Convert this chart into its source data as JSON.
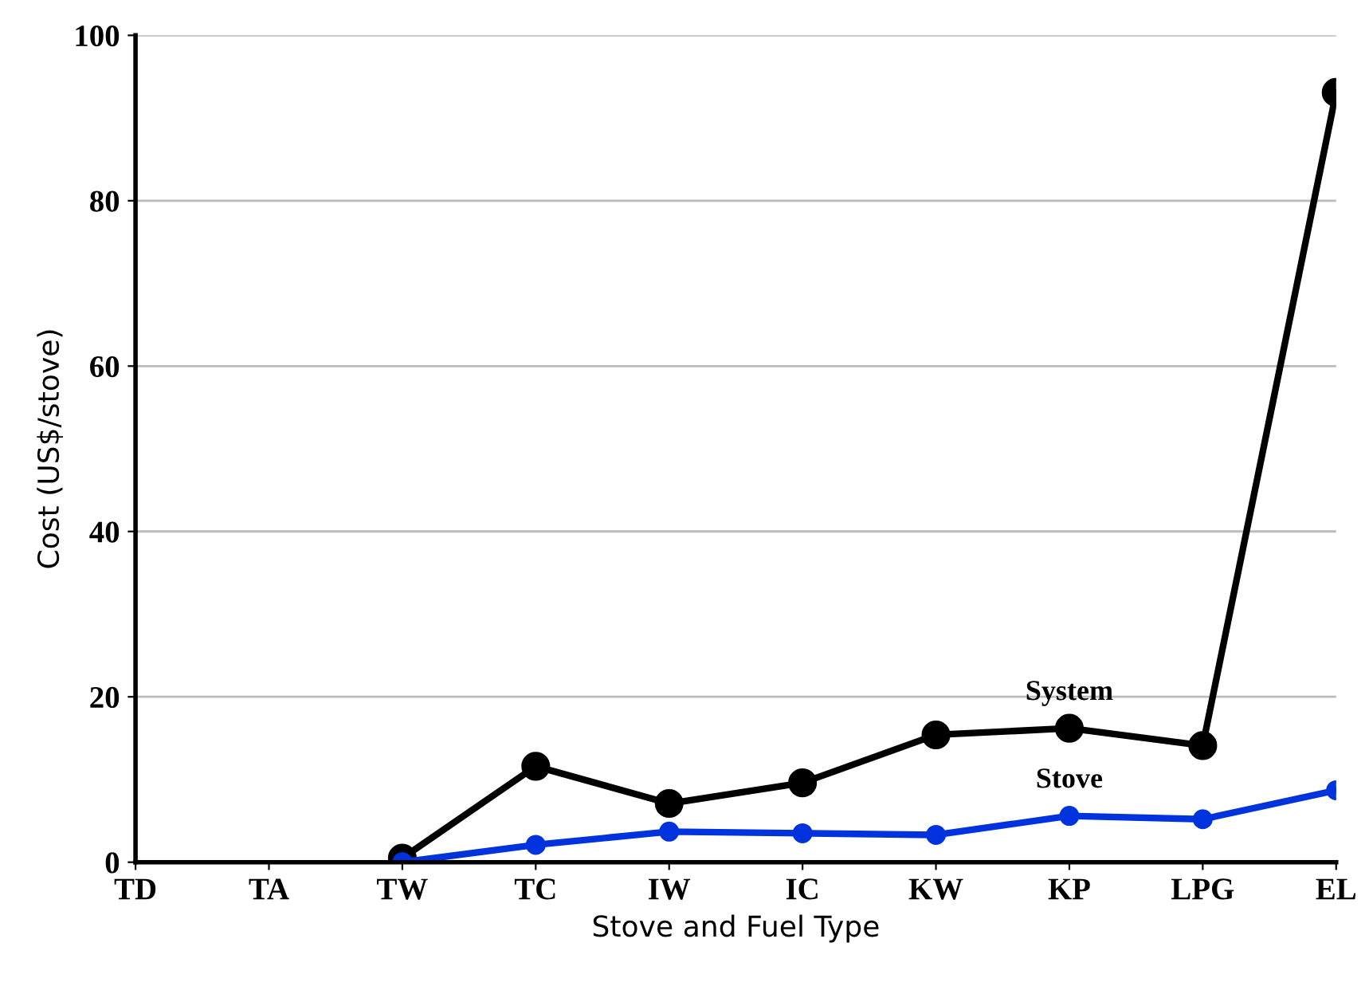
{
  "chart_data": {
    "type": "line",
    "xlabel": "Stove and Fuel Type",
    "ylabel": "Cost (US$/stove)",
    "categories": [
      "TD",
      "TA",
      "TW",
      "TC",
      "IW",
      "IC",
      "KW",
      "KP",
      "LPG",
      "EL"
    ],
    "series": [
      {
        "name": "System",
        "color": "#000000",
        "values": [
          null,
          null,
          0.5,
          11.6,
          7.1,
          9.6,
          15.4,
          16.2,
          14.1,
          93.1
        ]
      },
      {
        "name": "Stove",
        "color": "#0033dd",
        "values": [
          null,
          null,
          0.0,
          2.1,
          3.7,
          3.5,
          3.3,
          5.6,
          5.2,
          8.7
        ]
      }
    ],
    "ylim": [
      0,
      100
    ],
    "yticks": [
      0,
      20,
      40,
      60,
      80,
      100
    ],
    "grid": "y",
    "marker": "circle",
    "line_style": "solid"
  }
}
